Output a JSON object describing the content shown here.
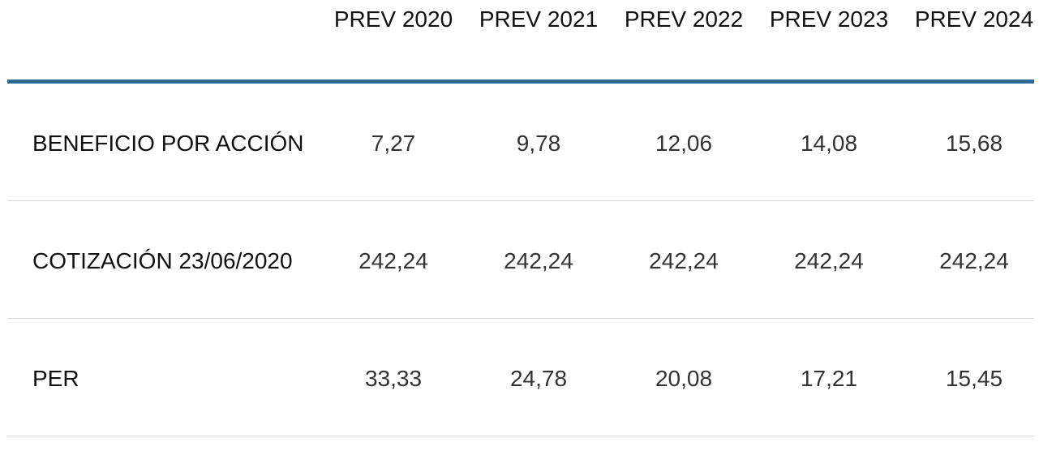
{
  "table": {
    "header": [
      "PREV 2020",
      "PREV 2021",
      "PREV 2022",
      "PREV 2023",
      "PREV 2024"
    ],
    "rows": [
      [
        "BENEFICIO POR ACCIÓN",
        "7,27",
        "9,78",
        "12,06",
        "14,08",
        "15,68"
      ],
      [
        "COTIZACIÓN 23/06/2020",
        "242,24",
        "242,24",
        "242,24",
        "242,24",
        "242,24"
      ],
      [
        "PER",
        "33,33",
        "24,78",
        "20,08",
        "17,21",
        "15,45"
      ]
    ]
  }
}
